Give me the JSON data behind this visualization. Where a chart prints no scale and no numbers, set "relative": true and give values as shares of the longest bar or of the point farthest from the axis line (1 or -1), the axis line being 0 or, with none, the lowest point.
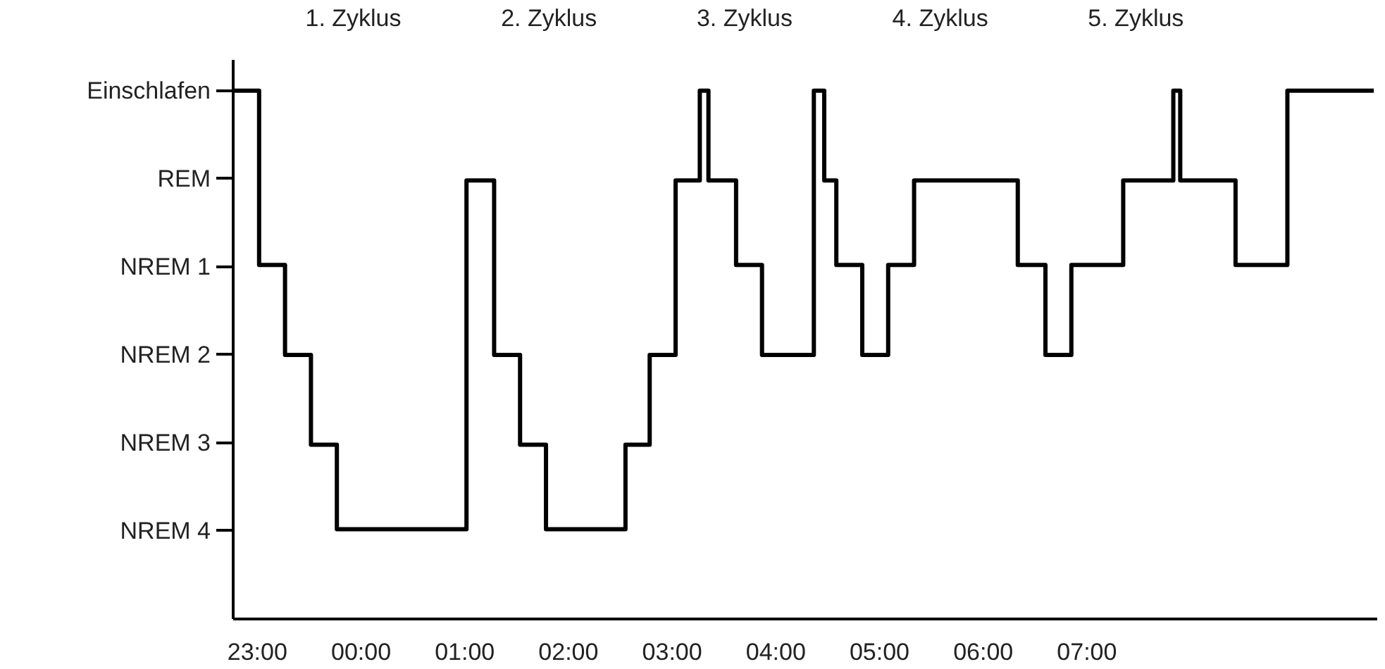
{
  "chart_data": {
    "type": "step",
    "grid": false,
    "marker": "none",
    "line_style": "solid",
    "x": [
      "2000-01-01T22:46",
      "2000-01-01T23:01",
      "2000-01-01T23:16",
      "2000-01-01T23:31",
      "2000-01-01T23:46",
      "2000-01-02T01:01",
      "2000-01-02T01:17",
      "2000-01-02T01:32",
      "2000-01-02T01:47",
      "2000-01-02T02:33",
      "2000-01-02T02:47",
      "2000-01-02T03:02",
      "2000-01-02T03:16",
      "2000-01-02T03:21",
      "2000-01-02T03:37",
      "2000-01-02T03:52",
      "2000-01-02T04:22",
      "2000-01-02T04:28",
      "2000-01-02T04:35",
      "2000-01-02T04:50",
      "2000-01-02T05:05",
      "2000-01-02T05:20",
      "2000-01-02T06:20",
      "2000-01-02T06:36",
      "2000-01-02T06:51",
      "2000-01-02T07:21",
      "2000-01-02T07:50",
      "2000-01-02T07:54",
      "2000-01-02T08:26",
      "2000-01-02T08:56",
      "2000-01-02T09:46"
    ],
    "y_categories": [
      "Einschlafen",
      "REM",
      "NREM 1",
      "NREM 2",
      "NREM 3",
      "NREM 4"
    ],
    "relative": true,
    "series": [
      {
        "color": "#000000",
        "values": [
          1,
          0.67,
          0.5,
          0.33,
          0.17,
          0.83,
          0.5,
          0.33,
          0.17,
          0.33,
          0.5,
          0.83,
          1,
          0.83,
          0.67,
          0.5,
          1,
          0.83,
          0.67,
          0.5,
          0.67,
          0.83,
          0.67,
          0.5,
          0.67,
          0.83,
          1,
          0.83,
          0.67,
          1,
          1
        ]
      }
    ],
    "xlim": [
      "2000-01-01T22:46",
      "2000-01-02T09:48"
    ],
    "xticks": [
      {
        "value": "2000-01-01T23:00",
        "label": "23:00"
      },
      {
        "value": "2000-01-02T00:00",
        "label": "00:00"
      },
      {
        "value": "2000-01-02T01:00",
        "label": "01:00"
      },
      {
        "value": "2000-01-02T02:00",
        "label": "02:00"
      },
      {
        "value": "2000-01-02T03:00",
        "label": "03:00"
      },
      {
        "value": "2000-01-02T04:00",
        "label": "04:00"
      },
      {
        "value": "2000-01-02T05:00",
        "label": "05:00"
      },
      {
        "value": "2000-01-02T06:00",
        "label": "06:00"
      },
      {
        "value": "2000-01-02T07:00",
        "label": "07:00"
      }
    ],
    "annotations": [
      "1. Zyklus",
      "2. Zyklus",
      "3. Zyklus",
      "4. Zyklus",
      "5. Zyklus"
    ]
  }
}
